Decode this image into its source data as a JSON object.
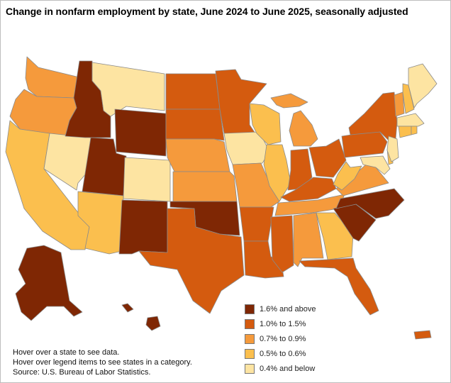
{
  "title": "Change in nonfarm employment by state, June 2024 to June 2025, seasonally adjusted",
  "colors": {
    "cat1": "#7f2704",
    "cat2": "#d45b0f",
    "cat3": "#f59a3c",
    "cat4": "#fbbf4e",
    "cat5": "#fde4a2",
    "border": "#8a8a8a"
  },
  "legend": [
    {
      "label": "1.6% and above",
      "category": 1
    },
    {
      "label": "1.0% to 1.5%",
      "category": 2
    },
    {
      "label": "0.7% to 0.9%",
      "category": 3
    },
    {
      "label": "0.5% to 0.6%",
      "category": 4
    },
    {
      "label": "0.4% and below",
      "category": 5
    }
  ],
  "notes": {
    "hover_state": "Hover over a state to see data.",
    "hover_legend": "Hover over legend items to see states in a category.",
    "source": "Source: U.S. Bureau of Labor Statistics."
  },
  "states": {
    "WA": 3,
    "OR": 3,
    "CA": 4,
    "NV": 5,
    "ID": 1,
    "MT": 5,
    "WY": 1,
    "UT": 1,
    "AZ": 4,
    "CO": 5,
    "NM": 1,
    "ND": 2,
    "SD": 2,
    "NE": 3,
    "KS": 3,
    "OK": 1,
    "TX": 2,
    "MN": 2,
    "IA": 5,
    "MO": 3,
    "AR": 2,
    "LA": 2,
    "WI": 4,
    "IL": 4,
    "MI": 3,
    "IN": 2,
    "OH": 2,
    "KY": 2,
    "TN": 3,
    "MS": 2,
    "AL": 3,
    "GA": 4,
    "FL": 2,
    "SC": 1,
    "NC": 1,
    "VA": 3,
    "WV": 4,
    "MD": 5,
    "DE": 4,
    "PA": 2,
    "NY": 2,
    "NJ": 5,
    "CT": 4,
    "RI": 4,
    "MA": 5,
    "VT": 3,
    "NH": 4,
    "ME": 5,
    "AK": 1,
    "HI": 1,
    "PR": 2
  }
}
